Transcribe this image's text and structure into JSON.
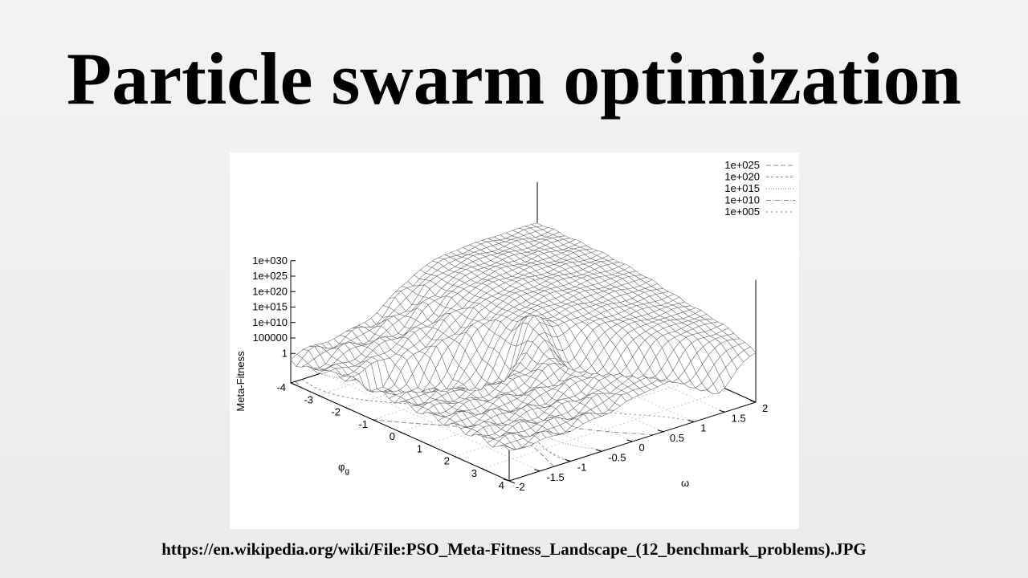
{
  "slide": {
    "title": "Particle swarm optimization",
    "source_url": "https://en.wikipedia.org/wiki/File:PSO_Meta-Fitness_Landscape_(12_benchmark_problems).JPG"
  },
  "chart_data": {
    "type": "surface",
    "title": "",
    "zlabel": "Meta-Fitness",
    "ylabel": "φg",
    "xlabel": "ω",
    "z_scale": "log",
    "z_ticks": [
      "1",
      "100000",
      "1e+010",
      "1e+015",
      "1e+020",
      "1e+025",
      "1e+030"
    ],
    "y_ticks": [
      "-4",
      "-3",
      "-2",
      "-1",
      "0",
      "1",
      "2",
      "3",
      "4"
    ],
    "x_ticks": [
      "-2",
      "-1.5",
      "-1",
      "-0.5",
      "0",
      "0.5",
      "1",
      "1.5",
      "2"
    ],
    "ylim": [
      -4,
      4
    ],
    "xlim": [
      -2,
      2
    ],
    "contour_legend": [
      "1e+025",
      "1e+020",
      "1e+015",
      "1e+010",
      "1e+005"
    ],
    "legend_position": "top-right",
    "grid": true,
    "colors": {
      "mesh": "#6a6a6a",
      "axes": "#000000",
      "grid": "#bdbdbd",
      "contour": "#8a8a8a",
      "background": "#ffffff"
    }
  }
}
